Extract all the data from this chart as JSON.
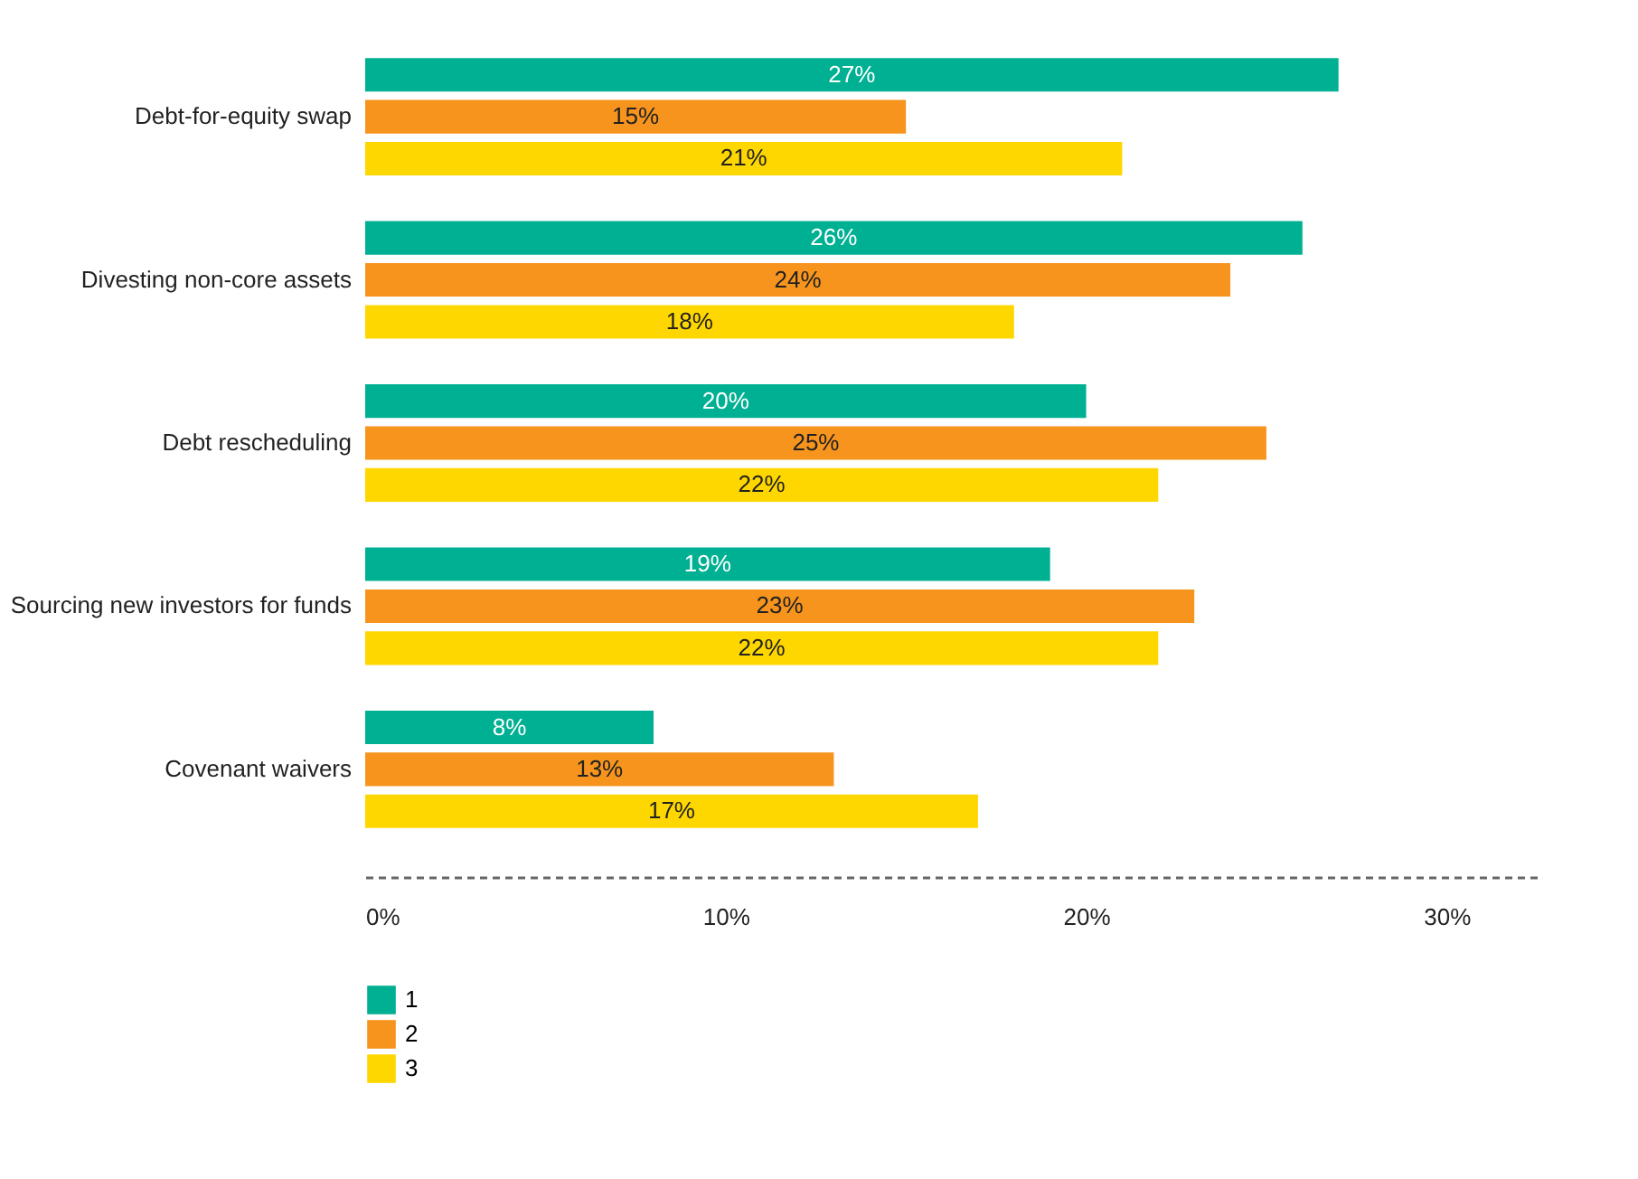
{
  "chart_data": {
    "type": "bar",
    "orientation": "horizontal",
    "categories": [
      "Debt-for-equity swap",
      "Divesting non-core assets",
      "Debt rescheduling",
      "Sourcing new investors for funds",
      "Covenant waivers"
    ],
    "series": [
      {
        "name": "1",
        "color": "#00b092",
        "values": [
          27,
          26,
          20,
          19,
          8
        ],
        "value_labels": [
          "27%",
          "26%",
          "20%",
          "19%",
          "8%"
        ]
      },
      {
        "name": "2",
        "color": "#f7941d",
        "values": [
          15,
          24,
          25,
          23,
          13
        ],
        "value_labels": [
          "15%",
          "24%",
          "25%",
          "23%",
          "13%"
        ]
      },
      {
        "name": "3",
        "color": "#ffd700",
        "values": [
          21,
          18,
          22,
          22,
          17
        ],
        "value_labels": [
          "21%",
          "18%",
          "22%",
          "22%",
          "17%"
        ]
      }
    ],
    "xlim": [
      0,
      32.5
    ],
    "xticks": [
      {
        "value": 0,
        "label": "0%"
      },
      {
        "value": 10,
        "label": "10%"
      },
      {
        "value": 20,
        "label": "20%"
      },
      {
        "value": 30,
        "label": "30%"
      }
    ],
    "grid": false,
    "legend": "bottom left"
  }
}
